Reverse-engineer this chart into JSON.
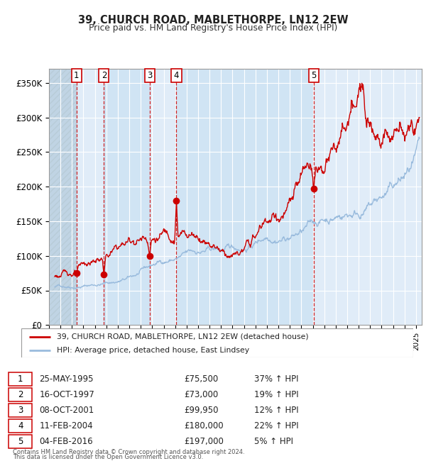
{
  "title": "39, CHURCH ROAD, MABLETHORPE, LN12 2EW",
  "subtitle": "Price paid vs. HM Land Registry's House Price Index (HPI)",
  "xlim_start": 1993.0,
  "xlim_end": 2025.5,
  "ylim_min": 0,
  "ylim_max": 370000,
  "yticks": [
    0,
    50000,
    100000,
    150000,
    200000,
    250000,
    300000,
    350000
  ],
  "ytick_labels": [
    "£0",
    "£50K",
    "£100K",
    "£150K",
    "£200K",
    "£250K",
    "£300K",
    "£350K"
  ],
  "transactions": [
    {
      "num": 1,
      "date": 1995.39,
      "price": 75500,
      "label": "1"
    },
    {
      "num": 2,
      "date": 1997.79,
      "price": 73000,
      "label": "2"
    },
    {
      "num": 3,
      "date": 2001.77,
      "price": 99950,
      "label": "3"
    },
    {
      "num": 4,
      "date": 2004.11,
      "price": 180000,
      "label": "4"
    },
    {
      "num": 5,
      "date": 2016.09,
      "price": 197000,
      "label": "5"
    }
  ],
  "legend_line1": "39, CHURCH ROAD, MABLETHORPE, LN12 2EW (detached house)",
  "legend_line2": "HPI: Average price, detached house, East Lindsey",
  "table_rows": [
    [
      "1",
      "25-MAY-1995",
      "£75,500",
      "37% ↑ HPI"
    ],
    [
      "2",
      "16-OCT-1997",
      "£73,000",
      "19% ↑ HPI"
    ],
    [
      "3",
      "08-OCT-2001",
      "£99,950",
      "12% ↑ HPI"
    ],
    [
      "4",
      "11-FEB-2004",
      "£180,000",
      "22% ↑ HPI"
    ],
    [
      "5",
      "04-FEB-2016",
      "£197,000",
      "5% ↑ HPI"
    ]
  ],
  "footer": "Contains HM Land Registry data © Crown copyright and database right 2024.\nThis data is licensed under the Open Government Licence v3.0.",
  "red_color": "#cc0000",
  "blue_line_color": "#99bbdd",
  "band_light": "#e0ecf8",
  "band_medium": "#d0e4f4",
  "hatch_color": "#c0d4e4",
  "grid_color": "#ffffff"
}
